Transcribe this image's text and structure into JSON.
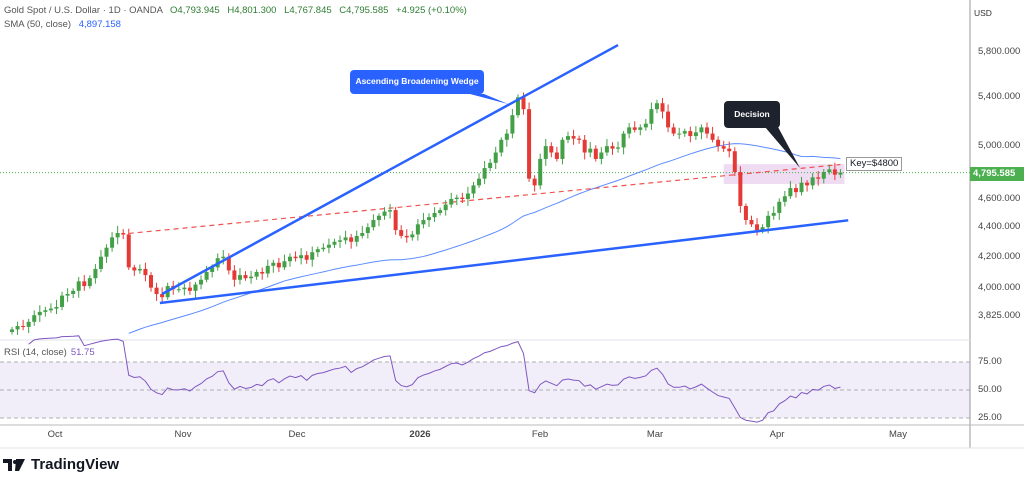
{
  "header": {
    "symbol": "Gold Spot / U.S. Dollar · 1D · OANDA",
    "open": "O4,793.945",
    "high": "H4,801.300",
    "low": "L4,767.845",
    "close": "C4,795.585",
    "change": "+4.925 (+0.10%)",
    "sma_label": "SMA (50, close)",
    "sma_value": "4,897.158"
  },
  "price_axis": {
    "currency": "USD",
    "current_price": "4,795.585",
    "ticks": [
      "5,800.000",
      "5,400.000",
      "5,000.000",
      "4,600.000",
      "4,400.000",
      "4,200.000",
      "4,000.000",
      "3,825.000"
    ]
  },
  "rsi": {
    "label": "RSI (14, close)",
    "value": "51.75",
    "ticks": [
      "75.00",
      "50.00",
      "25.00"
    ]
  },
  "time_axis": [
    "Oct",
    "Nov",
    "Dec",
    "2026",
    "Feb",
    "Mar",
    "Apr",
    "May"
  ],
  "annotations": {
    "wedge": "Ascending Broadening Wedge",
    "decision": "Decision",
    "key": "Key=$4800"
  },
  "colors": {
    "up": "#26a69a",
    "up_candle": "#43a047",
    "down": "#e53935",
    "line": "#2962ff",
    "sma": "#5b8cff",
    "rsi": "#7e57c2"
  },
  "brand": "TradingView",
  "chart_data": {
    "type": "candlestick",
    "title": "Gold Spot / U.S. Dollar · 1D · OANDA",
    "scale": "log",
    "ylim": [
      3700,
      5950
    ],
    "closes": [
      3745,
      3765,
      3760,
      3790,
      3830,
      3850,
      3860,
      3870,
      3880,
      3950,
      3960,
      3980,
      4040,
      4010,
      4060,
      4120,
      4200,
      4260,
      4330,
      4360,
      4350,
      4130,
      4110,
      4120,
      4080,
      4000,
      3960,
      3940,
      4010,
      3990,
      3990,
      4000,
      3980,
      4020,
      4050,
      4100,
      4130,
      4190,
      4200,
      4110,
      4050,
      4080,
      4060,
      4070,
      4100,
      4090,
      4140,
      4160,
      4130,
      4170,
      4200,
      4190,
      4210,
      4180,
      4230,
      4250,
      4260,
      4280,
      4300,
      4310,
      4330,
      4300,
      4340,
      4360,
      4400,
      4450,
      4480,
      4510,
      4520,
      4380,
      4340,
      4330,
      4350,
      4420,
      4450,
      4470,
      4500,
      4520,
      4560,
      4600,
      4610,
      4600,
      4640,
      4700,
      4750,
      4830,
      4870,
      4950,
      5050,
      5100,
      5250,
      5400,
      5300,
      4750,
      4700,
      4900,
      5000,
      4950,
      4900,
      5050,
      5080,
      5060,
      5050,
      4950,
      4980,
      4900,
      4950,
      5000,
      4980,
      4990,
      5100,
      5150,
      5130,
      5150,
      5180,
      5300,
      5350,
      5280,
      5150,
      5100,
      5100,
      5120,
      5080,
      5110,
      5150,
      5100,
      5050,
      5000,
      4980,
      4960,
      4800,
      4550,
      4450,
      4420,
      4380,
      4400,
      4480,
      4500,
      4580,
      4620,
      4680,
      4650,
      4720,
      4700,
      4760,
      4750,
      4800,
      4820,
      4780,
      4796
    ],
    "sma_period": 50,
    "rsi_period": 14,
    "rsi_levels": [
      75,
      50,
      25
    ],
    "drawings": {
      "wedge_upper": [
        [
          27,
          3960
        ],
        [
          109,
          5864
        ]
      ],
      "wedge_lower": [
        [
          26.6,
          3904
        ],
        [
          150.4,
          4448
        ]
      ],
      "key_dashed": [
        [
          21,
          4357
        ],
        [
          149,
          4857
        ]
      ],
      "decision_zone": {
        "from": 128,
        "to": 149,
        "low": 4710,
        "high": 4860
      }
    }
  }
}
